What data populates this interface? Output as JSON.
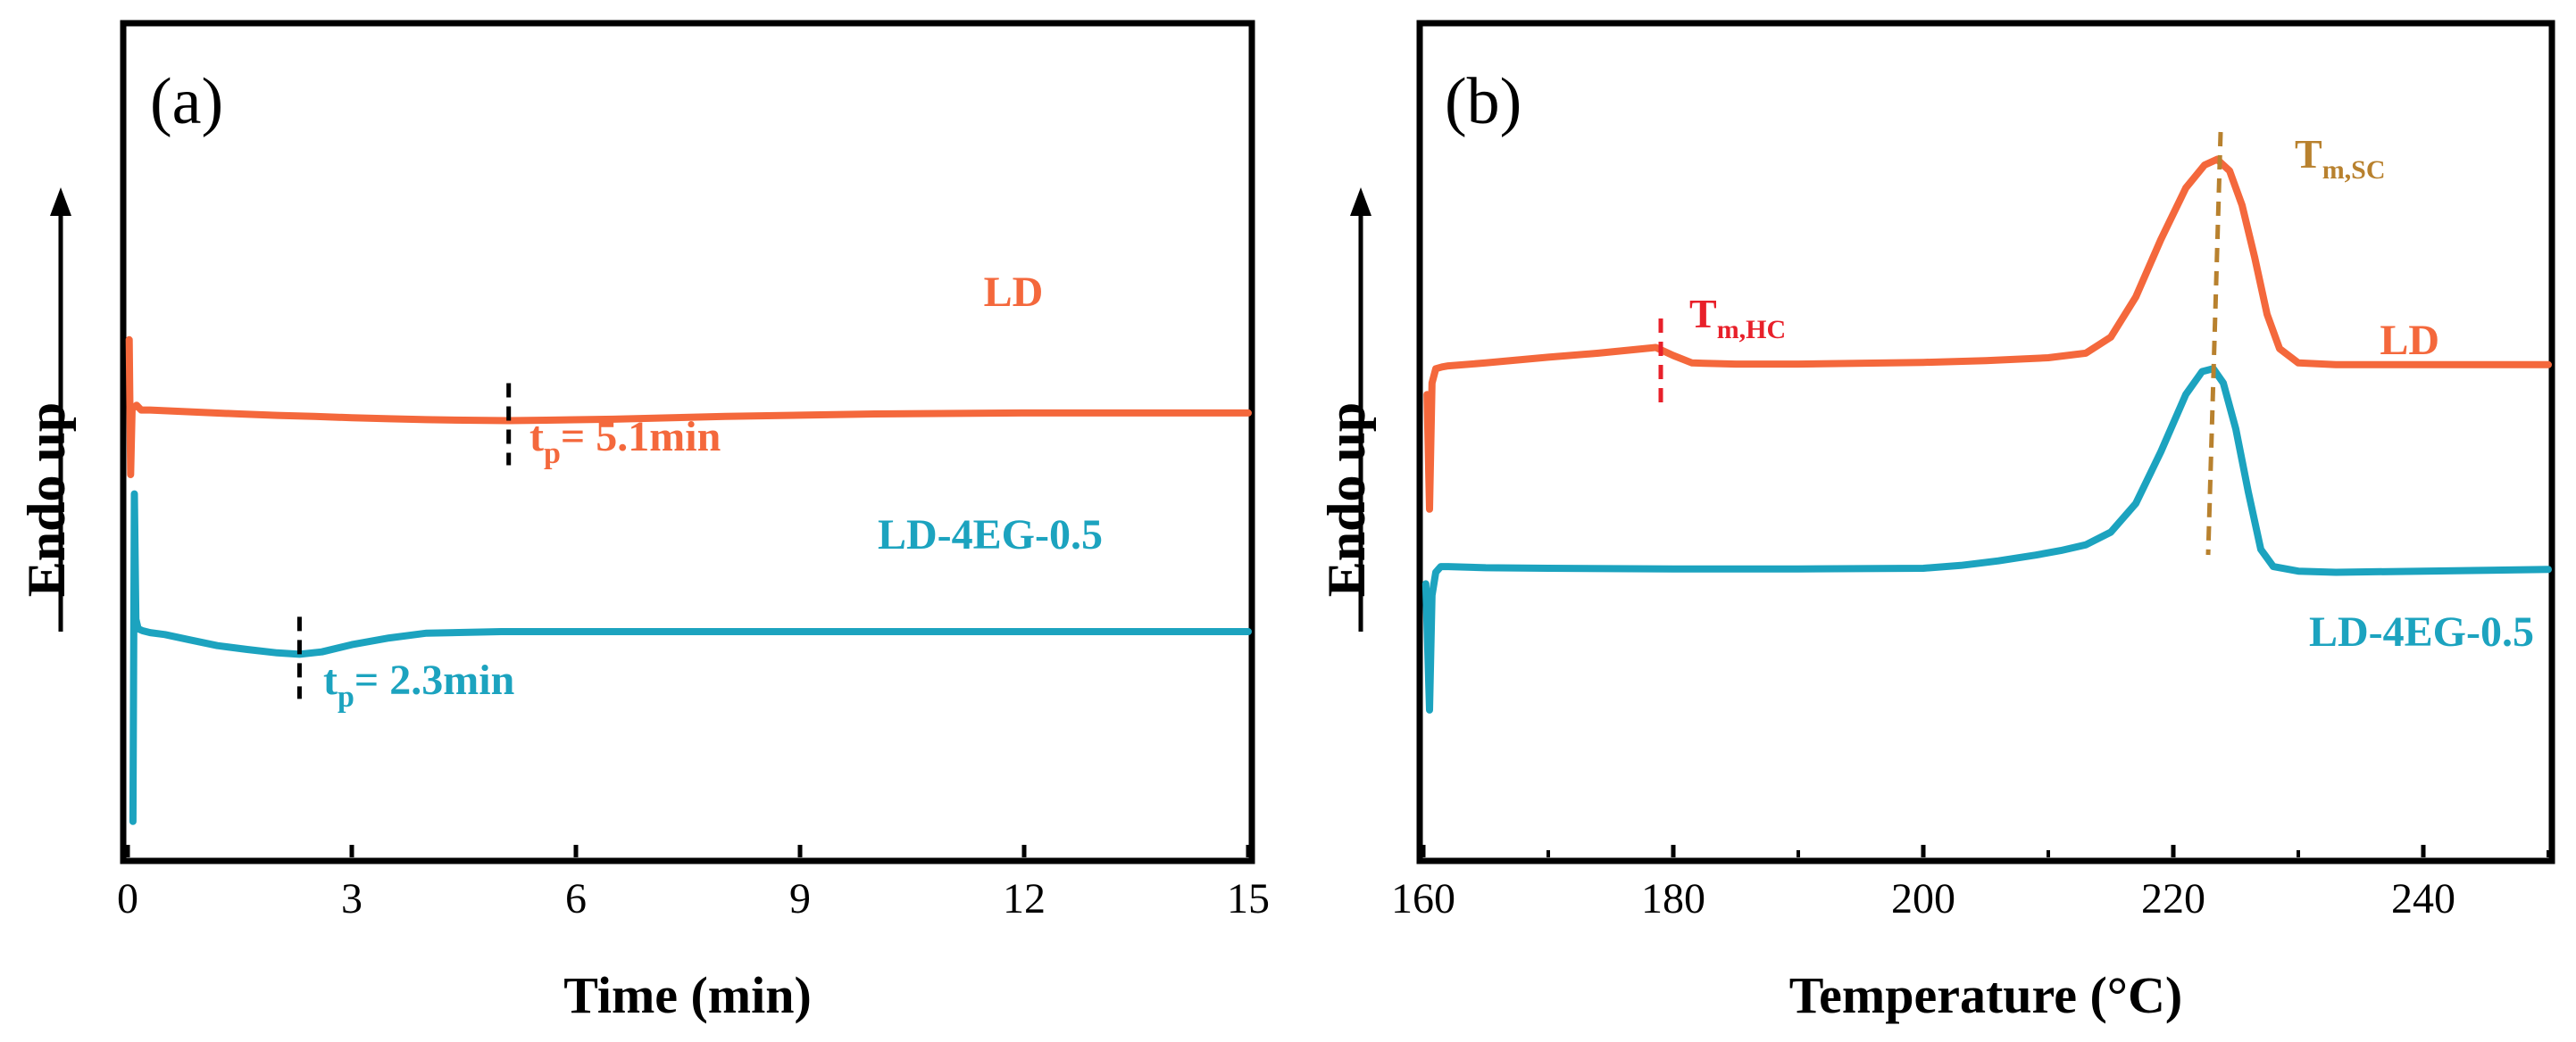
{
  "chart_data": [
    {
      "panel": "(a)",
      "type": "line",
      "xlabel": "Time (min)",
      "ylabel": "Endo up",
      "xlim": [
        0,
        15
      ],
      "x_ticks": [
        0,
        3,
        6,
        9,
        12,
        15
      ],
      "x_tick_labels": [
        "0",
        "3",
        "6",
        "9",
        "12",
        "15"
      ],
      "y_ticks_shown": false,
      "series": [
        {
          "name": "LD",
          "color": "#F4683C",
          "x": [
            0.02,
            0.04,
            0.06,
            0.09,
            0.12,
            0.18,
            0.3,
            0.6,
            1,
            1.5,
            2,
            2.5,
            3,
            3.5,
            4,
            4.5,
            5.1,
            5.6,
            6.5,
            8,
            10,
            12,
            14,
            15
          ],
          "y": [
            0.98,
            0.7,
            0.84,
            0.84,
            0.844,
            0.834,
            0.834,
            0.832,
            0.829,
            0.826,
            0.823,
            0.821,
            0.818,
            0.816,
            0.814,
            0.813,
            0.812,
            0.813,
            0.815,
            0.821,
            0.826,
            0.828,
            0.828,
            0.828
          ],
          "annotation": {
            "t_label": "t",
            "t_sub": "p",
            "value_text": "= 5.1min",
            "tp": 5.1
          }
        },
        {
          "name": "LD-4EG-0.5",
          "color": "#1CA3BF",
          "x": [
            0.07,
            0.09,
            0.11,
            0.14,
            0.2,
            0.3,
            0.5,
            0.8,
            1.2,
            1.6,
            2.0,
            2.3,
            2.6,
            3.0,
            3.5,
            4.0,
            5.0,
            6.0,
            8.0,
            10,
            12,
            15
          ],
          "y": [
            -0.02,
            0.66,
            0.4,
            0.38,
            0.376,
            0.372,
            0.368,
            0.358,
            0.345,
            0.337,
            0.33,
            0.327,
            0.332,
            0.347,
            0.361,
            0.371,
            0.374,
            0.374,
            0.374,
            0.374,
            0.374,
            0.374
          ],
          "annotation": {
            "t_label": "t",
            "t_sub": "p",
            "value_text": "= 2.3min",
            "tp": 2.3
          }
        }
      ]
    },
    {
      "panel": "(b)",
      "type": "line",
      "xlabel": "Temperature (°C)",
      "ylabel": "Endo up",
      "xlim": [
        160,
        250
      ],
      "x_ticks": [
        160,
        180,
        200,
        220,
        240
      ],
      "x_tick_labels": [
        "160",
        "180",
        "200",
        "220",
        "240"
      ],
      "y_ticks_shown": false,
      "series": [
        {
          "name": "LD",
          "color": "#F4683C",
          "x": [
            160.3,
            160.5,
            160.7,
            161.0,
            161.5,
            162,
            165,
            170,
            174,
            178.6,
            180.0,
            181.5,
            185,
            190,
            200,
            205,
            210,
            213,
            215,
            217,
            219,
            221,
            222.5,
            223.5,
            224.5,
            225.5,
            226.5,
            227.5,
            228.5,
            230,
            233,
            240,
            250
          ],
          "y": [
            0.6,
            0.4,
            0.62,
            0.645,
            0.648,
            0.65,
            0.655,
            0.665,
            0.672,
            0.682,
            0.668,
            0.655,
            0.653,
            0.653,
            0.656,
            0.659,
            0.664,
            0.672,
            0.7,
            0.77,
            0.87,
            0.96,
            1.0,
            1.01,
            0.99,
            0.93,
            0.84,
            0.74,
            0.68,
            0.655,
            0.652,
            0.652,
            0.652
          ],
          "annotation": {
            "label": "T",
            "sub": "m,HC",
            "temp": 179,
            "color": "#E8202A"
          }
        },
        {
          "name": "LD-4EG-0.5",
          "color": "#1CA3BF",
          "x": [
            160.2,
            160.5,
            160.7,
            161.0,
            161.4,
            162,
            165,
            170,
            180,
            190,
            200,
            203,
            206,
            209,
            211,
            213,
            215,
            217,
            219,
            221,
            222.3,
            223.2,
            224.0,
            225.0,
            226.0,
            227.0,
            228.0,
            230,
            233,
            240,
            250
          ],
          "y": [
            0.27,
            0.05,
            0.25,
            0.29,
            0.3,
            0.3,
            0.298,
            0.297,
            0.296,
            0.296,
            0.297,
            0.302,
            0.31,
            0.32,
            0.328,
            0.338,
            0.36,
            0.41,
            0.5,
            0.6,
            0.64,
            0.645,
            0.62,
            0.54,
            0.43,
            0.33,
            0.3,
            0.292,
            0.29,
            0.292,
            0.295
          ],
          "annotation": null
        }
      ],
      "extra_annotations": [
        {
          "label": "T",
          "sub": "m,SC",
          "temp": 223.5,
          "color": "#B8812E"
        }
      ]
    }
  ]
}
